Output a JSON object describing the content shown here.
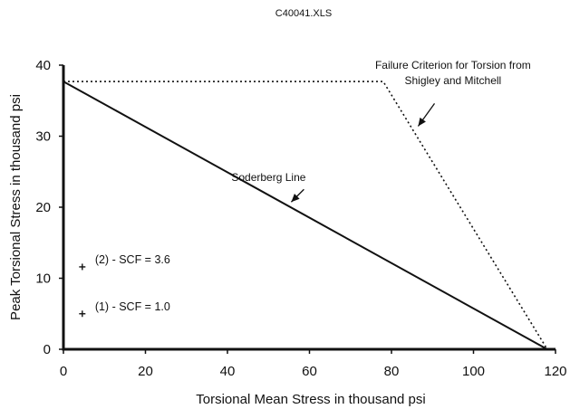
{
  "title": "C40041.XLS",
  "chart_data": {
    "type": "line",
    "title": "C40041.XLS",
    "xlabel": "Torsional Mean Stress in thousand psi",
    "ylabel": "Peak Torsional Stress in thousand psi",
    "xlim": [
      0,
      120
    ],
    "ylim": [
      0,
      40
    ],
    "x_ticks": [
      0,
      20,
      40,
      60,
      80,
      100,
      120
    ],
    "y_ticks": [
      0,
      10,
      20,
      30,
      40
    ],
    "grid": false,
    "legend": "none",
    "series": [
      {
        "name": "Soderberg Line",
        "style": "solid",
        "x": [
          0,
          118
        ],
        "y": [
          37.7,
          0
        ]
      },
      {
        "name": "Failure Criterion for Torsion from Shigley and Mitchell",
        "style": "dotted",
        "x": [
          0,
          78,
          118
        ],
        "y": [
          37.7,
          37.7,
          0
        ]
      }
    ],
    "points": [
      {
        "label": "(2) - SCF = 3.6",
        "x": 4.6,
        "y": 11.6,
        "marker": "+"
      },
      {
        "label": "(1) - SCF = 1.0",
        "x": 4.6,
        "y": 5.0,
        "marker": "+"
      }
    ],
    "annotations": [
      {
        "text": "Soderberg Line",
        "x": 56,
        "y": 24.3
      },
      {
        "text_lines": [
          "Failure Criterion for Torsion from",
          "Shigley and Mitchell"
        ],
        "x": 95,
        "y": 39
      }
    ]
  }
}
